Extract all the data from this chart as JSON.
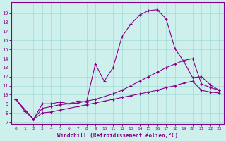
{
  "xlabel": "Windchill (Refroidissement éolien,°C)",
  "bg_color": "#cef0ec",
  "grid_color": "#aaddd8",
  "line_color": "#880088",
  "xlim": [
    -0.5,
    23.5
  ],
  "ylim": [
    6.8,
    20.2
  ],
  "yticks": [
    7,
    8,
    9,
    10,
    11,
    12,
    13,
    14,
    15,
    16,
    17,
    18,
    19
  ],
  "xticks": [
    0,
    1,
    2,
    3,
    4,
    5,
    6,
    7,
    8,
    9,
    10,
    11,
    12,
    13,
    14,
    15,
    16,
    17,
    18,
    19,
    20,
    21,
    22,
    23
  ],
  "line1_x": [
    0,
    1,
    2,
    3,
    4,
    5,
    6,
    7,
    8,
    9,
    10,
    11,
    12,
    13,
    14,
    15,
    16,
    17,
    18,
    19,
    20,
    21,
    22,
    23
  ],
  "line1_y": [
    9.5,
    8.2,
    7.3,
    9.0,
    9.0,
    9.2,
    9.0,
    9.3,
    9.2,
    13.4,
    11.5,
    13.0,
    16.4,
    17.8,
    18.8,
    19.3,
    19.4,
    18.4,
    15.1,
    13.7,
    11.9,
    12.0,
    11.1,
    10.5
  ],
  "line2_x": [
    0,
    2,
    3,
    4,
    5,
    6,
    7,
    8,
    9,
    10,
    11,
    12,
    13,
    14,
    15,
    16,
    17,
    18,
    19,
    20,
    21,
    22,
    23
  ],
  "line2_y": [
    9.5,
    7.3,
    8.5,
    8.7,
    8.9,
    9.0,
    9.1,
    9.3,
    9.5,
    9.8,
    10.1,
    10.5,
    11.0,
    11.5,
    12.0,
    12.5,
    13.0,
    13.4,
    13.8,
    14.0,
    11.2,
    10.8,
    10.5
  ],
  "line3_x": [
    0,
    2,
    3,
    4,
    5,
    6,
    7,
    8,
    9,
    10,
    11,
    12,
    13,
    14,
    15,
    16,
    17,
    18,
    19,
    20,
    21,
    22,
    23
  ],
  "line3_y": [
    9.5,
    7.3,
    8.0,
    8.1,
    8.3,
    8.5,
    8.7,
    8.9,
    9.1,
    9.3,
    9.5,
    9.7,
    9.9,
    10.1,
    10.3,
    10.5,
    10.8,
    11.0,
    11.3,
    11.5,
    10.5,
    10.3,
    10.2
  ]
}
